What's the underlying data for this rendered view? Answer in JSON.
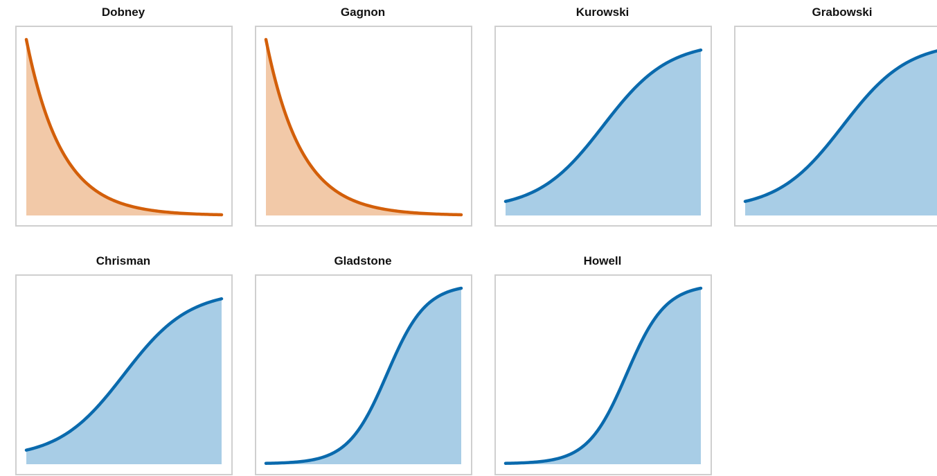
{
  "chart_data": [
    {
      "type": "area",
      "title": "Dobney",
      "curve": "decay",
      "color": "#d35f0a",
      "fill": "#f2c9a8"
    },
    {
      "type": "area",
      "title": "Gagnon",
      "curve": "decay",
      "color": "#d35f0a",
      "fill": "#f2c9a8"
    },
    {
      "type": "area",
      "title": "Kurowski",
      "curve": "sigmoid-gentle",
      "color": "#0a6aad",
      "fill": "#a8cde6"
    },
    {
      "type": "area",
      "title": "Grabowski",
      "curve": "sigmoid-gentle",
      "color": "#0a6aad",
      "fill": "#a8cde6"
    },
    {
      "type": "area",
      "title": "Chrisman",
      "curve": "sigmoid-gentle",
      "color": "#0a6aad",
      "fill": "#a8cde6"
    },
    {
      "type": "area",
      "title": "Gladstone",
      "curve": "sigmoid-steep",
      "color": "#0a6aad",
      "fill": "#a8cde6"
    },
    {
      "type": "area",
      "title": "Howell",
      "curve": "sigmoid-steep",
      "color": "#0a6aad",
      "fill": "#a8cde6"
    }
  ]
}
